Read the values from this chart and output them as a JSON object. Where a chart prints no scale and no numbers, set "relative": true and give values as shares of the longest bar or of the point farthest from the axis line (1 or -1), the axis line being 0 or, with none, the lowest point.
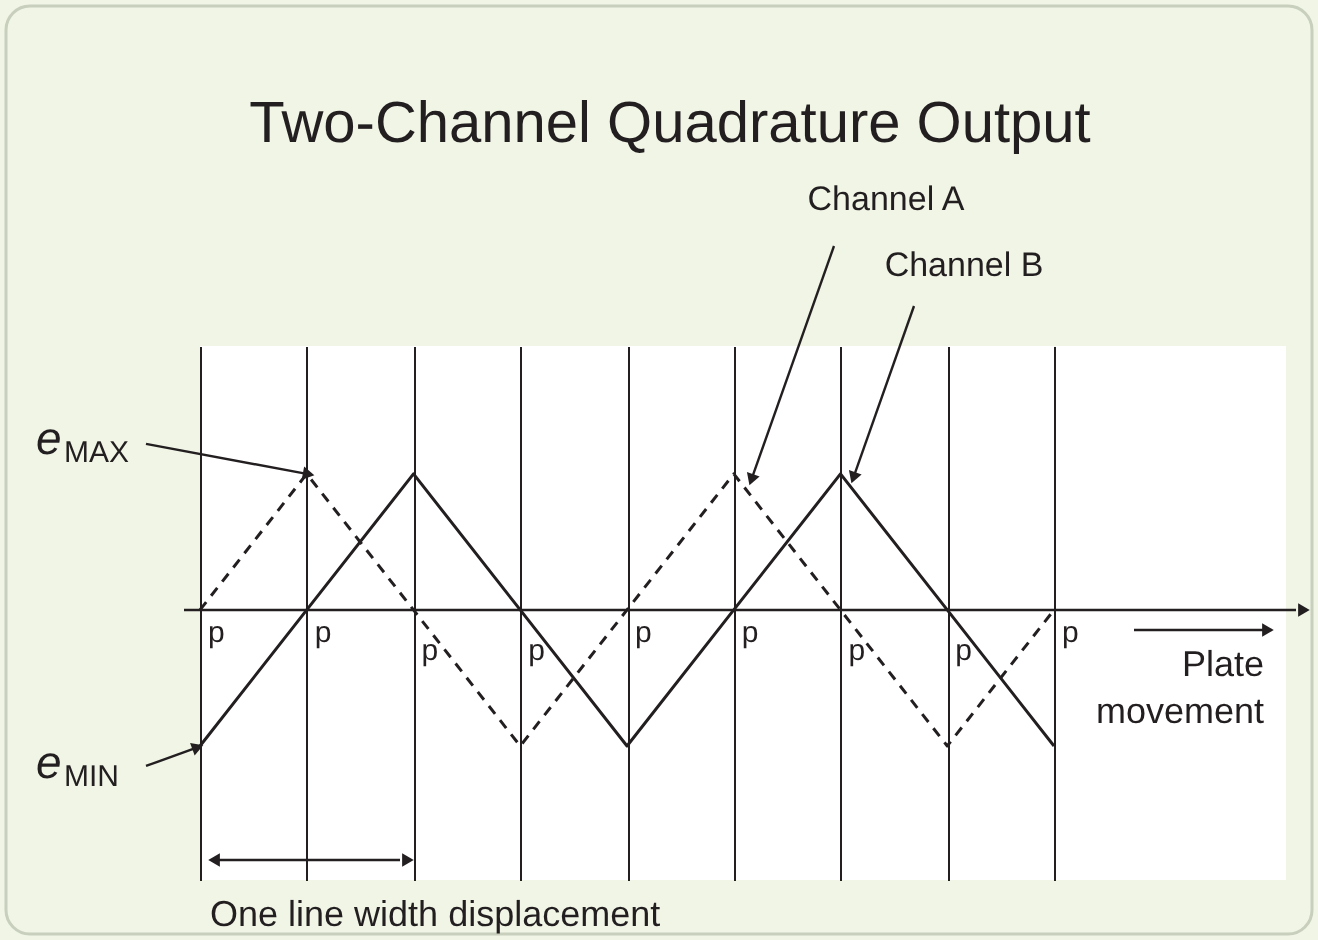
{
  "chart_data": {
    "type": "line",
    "relative": true,
    "title": "Two-Channel Quadrature Output",
    "xlabel": "Plate movement",
    "categories": [
      null,
      null,
      null,
      null,
      null,
      null,
      null,
      null,
      null
    ],
    "grid": "x",
    "series": [
      {
        "name": "Channel A",
        "color": "#231f20",
        "line_style": "dashed",
        "values": [
          0,
          1,
          0,
          -1,
          0,
          1,
          0,
          -1,
          0
        ]
      },
      {
        "name": "Channel B",
        "color": "#231f20",
        "line_style": "solid",
        "values": [
          -1,
          0,
          1,
          0,
          -1,
          0,
          1,
          0,
          -1
        ]
      }
    ],
    "annotations": [
      "e$_{MAX}$",
      "e$_{MIN}$",
      "One line width displacement",
      "p",
      "p",
      "p",
      "p",
      "p",
      "p",
      "p",
      "p",
      "p"
    ]
  }
}
